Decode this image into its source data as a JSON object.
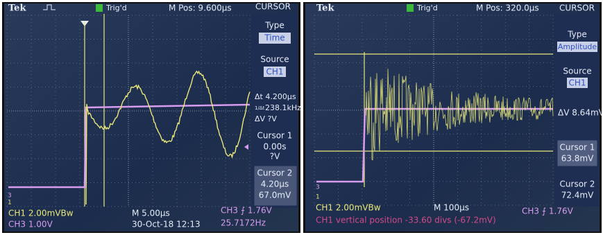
{
  "left": {
    "brand": "Tek",
    "trigger": "Trig'd",
    "position": "M Pos: 9.600µs",
    "menu": {
      "title": "CURSOR",
      "type_label": "Type",
      "type_value": "Time",
      "source_label": "Source",
      "source_value": "CH1",
      "delta_t": "Δt 4.200µs",
      "inverse_symbol": "1/Δt",
      "frequency": "238.1kHz",
      "delta_v": "ΔV ?V",
      "cursor1": {
        "label": "Cursor 1",
        "time": "0.00s",
        "voltage": "?V"
      },
      "cursor2": {
        "label": "Cursor 2",
        "time": "4.20µs",
        "voltage": "67.0mV"
      }
    },
    "markers": {
      "ch3": "3",
      "ch1": "1"
    },
    "status": {
      "ch1": "CH1 2.00mVBw",
      "ch3": "CH3 1.00V",
      "timebase": "M 5.00µs",
      "datetime": "30-Oct-18 12:13",
      "trigger": "CH3 ⨍ 1.76V",
      "frequency": "25.7172Hz"
    }
  },
  "right": {
    "brand": "Tek",
    "trigger": "Trig'd",
    "position": "M Pos: 320.0µs",
    "menu": {
      "title": "CURSOR",
      "type_label": "Type",
      "type_value": "Amplitude",
      "source_label": "Source",
      "source_value": "CH1",
      "delta_v": "ΔV 8.64mV",
      "cursor1": {
        "label": "Cursor 1",
        "voltage": "63.8mV"
      },
      "cursor2": {
        "label": "Cursor 2",
        "voltage": "72.4mV"
      }
    },
    "markers": {
      "ch3": "3",
      "ch1": "1"
    },
    "status": {
      "ch1": "CH1 2.00mVBw",
      "timebase": "M 100µs",
      "trigger": "CH3 ⨍ 1.76V",
      "message": "CH1 vertical position -33.60 divs (-67.2mV)"
    }
  }
}
